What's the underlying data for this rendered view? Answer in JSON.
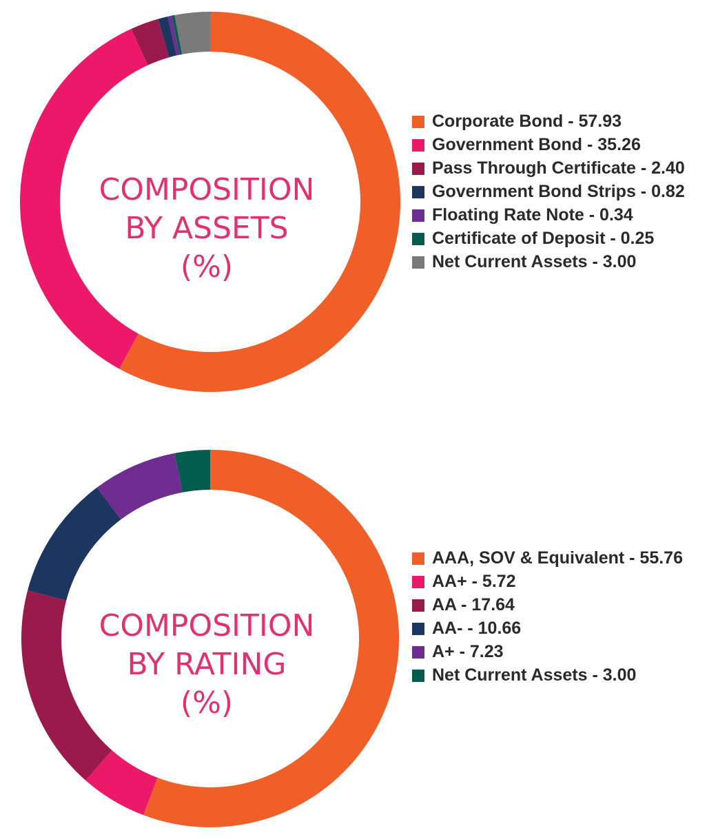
{
  "chart_data": [
    {
      "type": "pie",
      "title_lines": [
        "COMPOSITION",
        "BY ASSETS",
        "(%)"
      ],
      "slices": [
        {
          "label": "Corporate Bond - 57.93",
          "value": 57.93,
          "color": "#f15f29"
        },
        {
          "label": "Government Bond - 35.26",
          "value": 35.26,
          "color": "#ec1869"
        },
        {
          "label": "Pass Through Certificate - 2.40",
          "value": 2.4,
          "color": "#9a1a4b"
        },
        {
          "label": "Government Bond Strips - 0.82",
          "value": 0.82,
          "color": "#1d365f"
        },
        {
          "label": "Floating Rate Note - 0.34",
          "value": 0.34,
          "color": "#6f2c91"
        },
        {
          "label": "Certificate of Deposit - 0.25",
          "value": 0.25,
          "color": "#045d4f"
        },
        {
          "label": "Net Current Assets - 3.00",
          "value": 3.0,
          "color": "#7a7a7a"
        }
      ]
    },
    {
      "type": "pie",
      "title_lines": [
        "COMPOSITION",
        "BY RATING",
        "(%)"
      ],
      "slices": [
        {
          "label": "AAA, SOV & Equivalent - 55.76",
          "value": 55.76,
          "color": "#f15f29"
        },
        {
          "label": "AA+ - 5.72",
          "value": 5.72,
          "color": "#ec1869"
        },
        {
          "label": "AA - 17.64",
          "value": 17.64,
          "color": "#9a1a4b"
        },
        {
          "label": "AA- - 10.66",
          "value": 10.66,
          "color": "#1d365f"
        },
        {
          "label": "A+ - 7.23",
          "value": 7.23,
          "color": "#6f2c91"
        },
        {
          "label": "Net Current Assets - 3.00",
          "value": 3.0,
          "color": "#045d4f"
        }
      ]
    }
  ]
}
